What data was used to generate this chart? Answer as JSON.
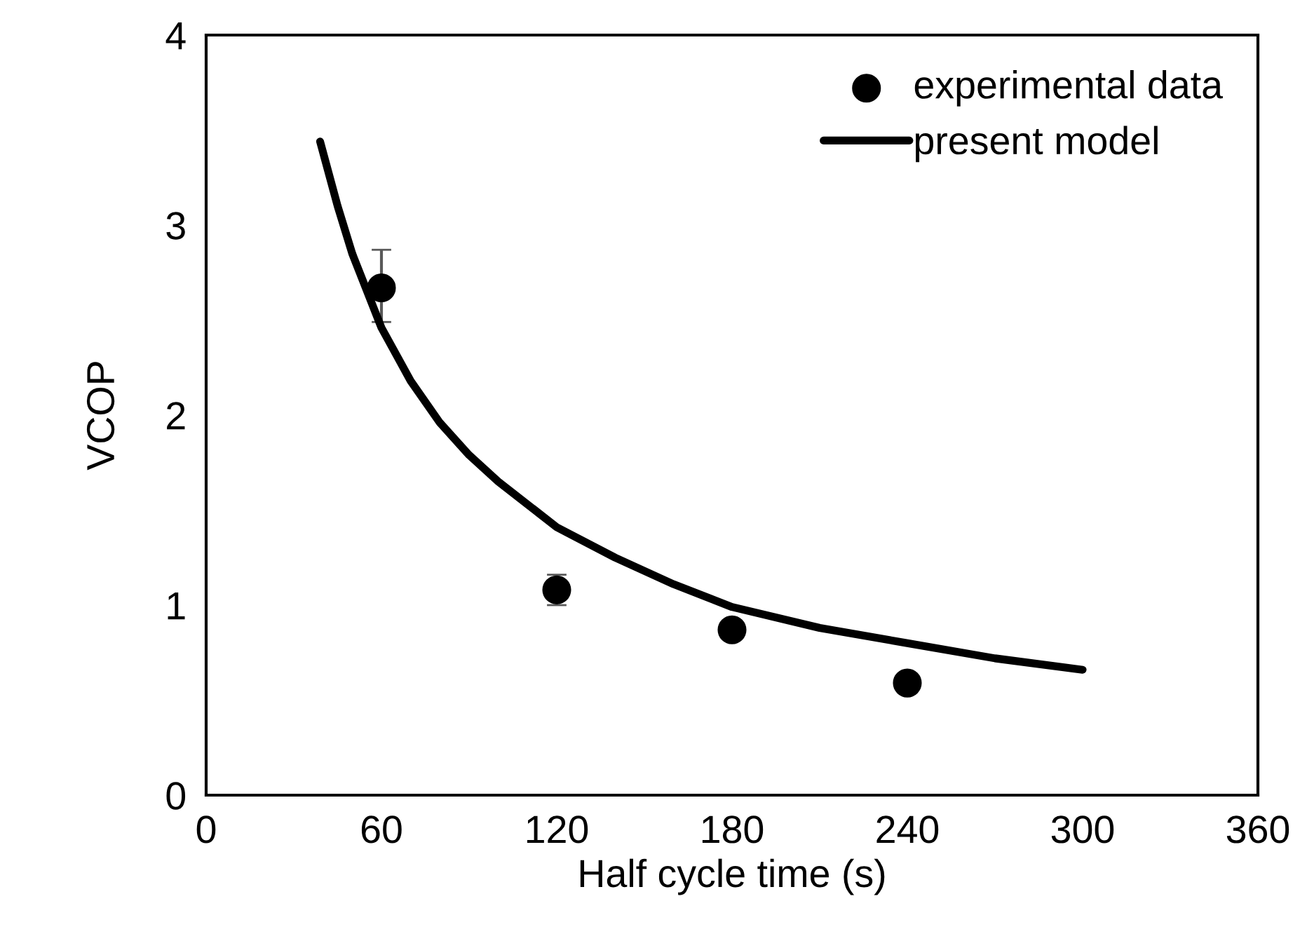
{
  "chart_data": {
    "type": "scatter",
    "xlabel": "Half cycle time (s)",
    "ylabel": "VCOP",
    "xlim": [
      0,
      360
    ],
    "xticks": [
      0,
      60,
      120,
      180,
      240,
      300,
      360
    ],
    "ylim": [
      0,
      4
    ],
    "yticks": [
      0,
      1,
      2,
      3,
      4
    ],
    "grid": false,
    "legend": "top right",
    "series": [
      {
        "name": "experimental data",
        "marker": "circle",
        "color": "#000000",
        "x": [
          60,
          120,
          180,
          240
        ],
        "values": [
          2.67,
          1.08,
          0.87,
          0.59
        ],
        "errors": [
          [
            2.49,
            2.87
          ],
          [
            1.0,
            1.16
          ],
          null,
          null
        ]
      },
      {
        "name": "present model",
        "type": "line",
        "marker": "none",
        "line_style": "solid",
        "color": "#000000",
        "x": [
          39,
          45,
          50,
          60,
          70,
          80,
          90,
          100,
          120,
          140,
          160,
          180,
          210,
          240,
          270,
          300
        ],
        "values": [
          3.44,
          3.1,
          2.85,
          2.46,
          2.18,
          1.96,
          1.79,
          1.65,
          1.41,
          1.25,
          1.11,
          0.99,
          0.88,
          0.8,
          0.72,
          0.66
        ]
      }
    ]
  }
}
